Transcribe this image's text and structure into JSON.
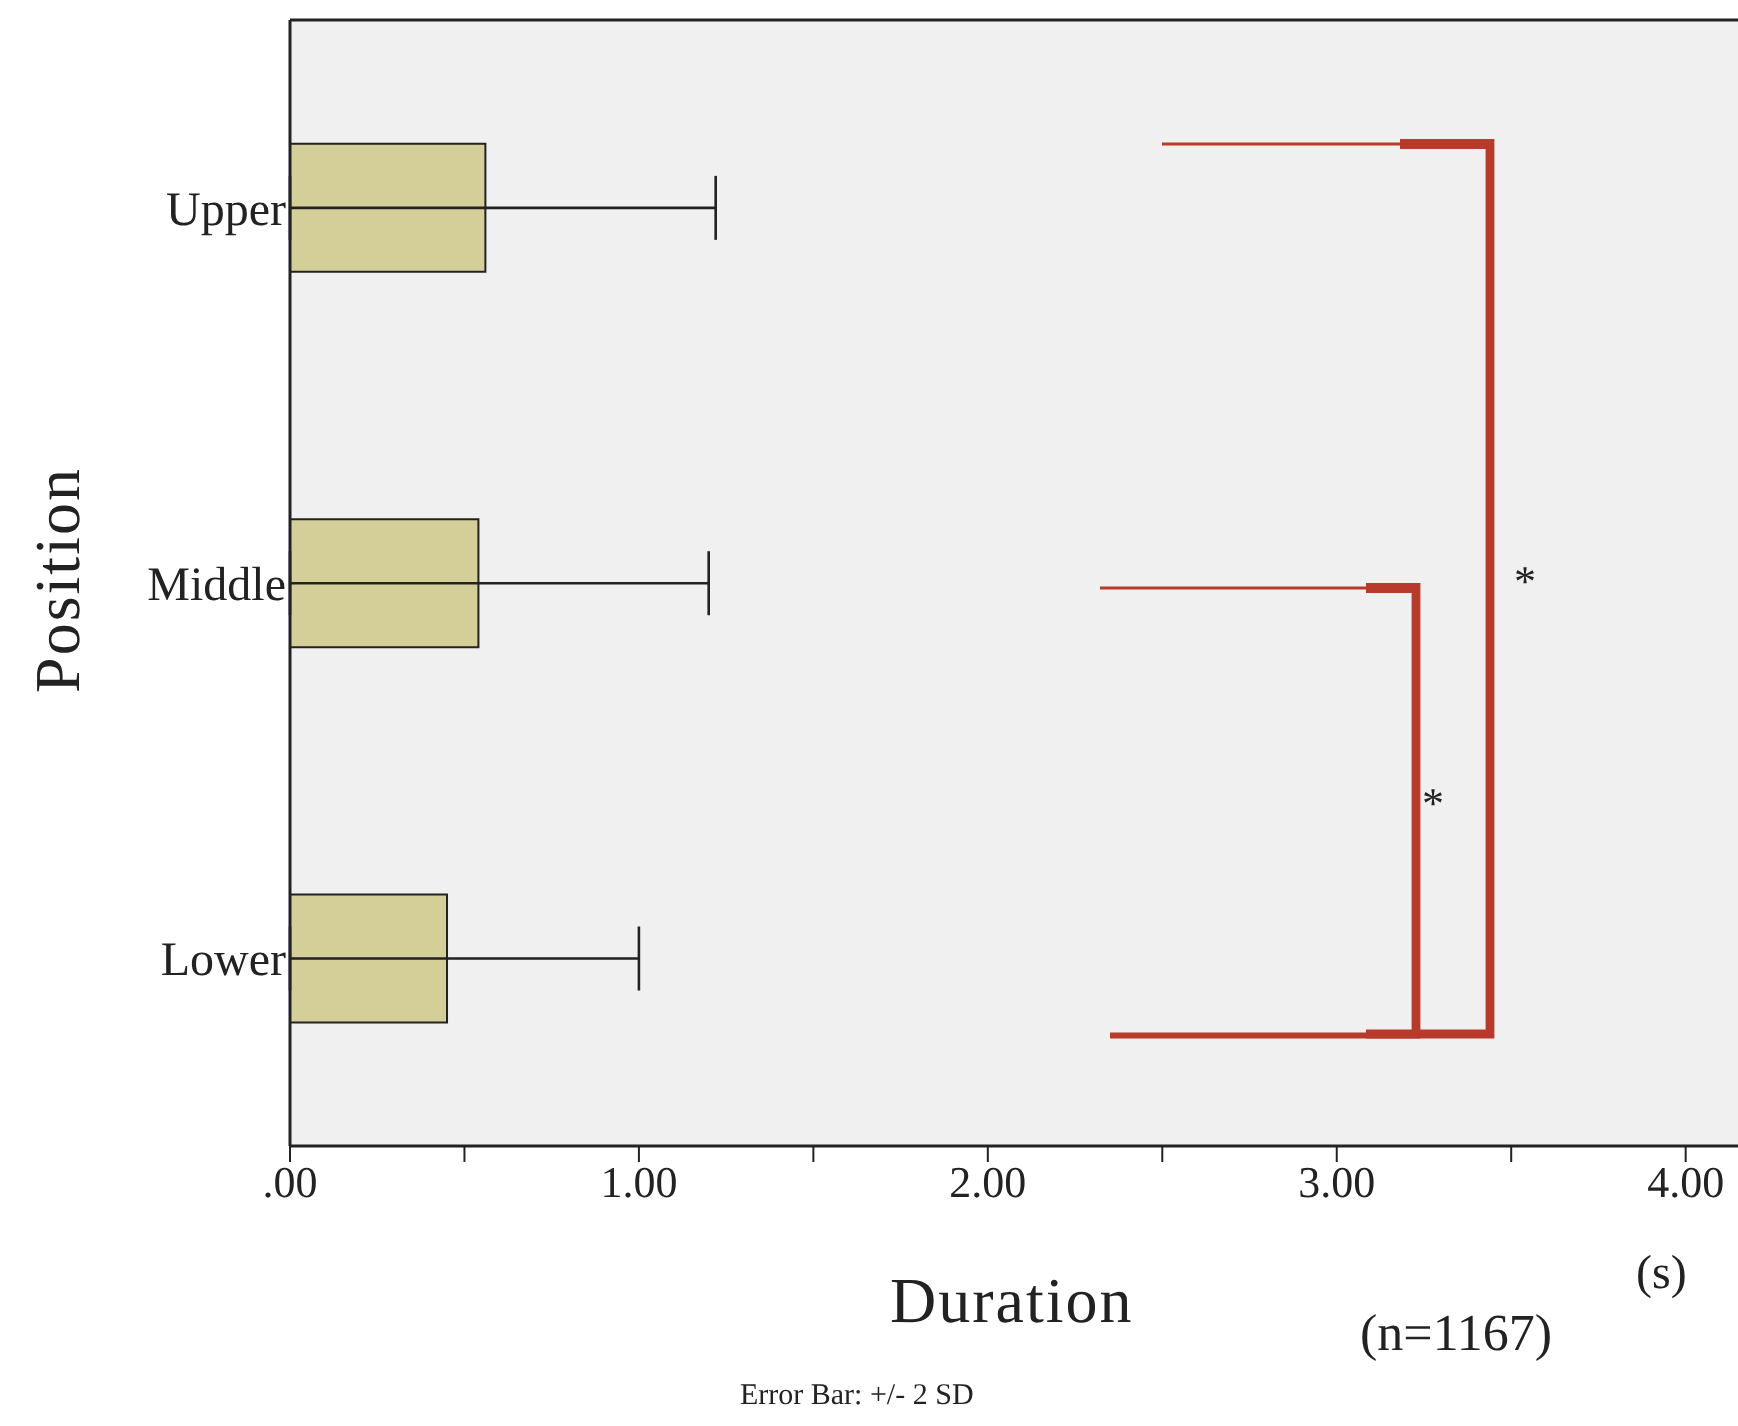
{
  "chart_data": {
    "type": "bar",
    "orientation": "horizontal",
    "categories": [
      "Upper",
      "Middle",
      "Lower"
    ],
    "values": [
      0.56,
      0.54,
      0.45
    ],
    "errors": [
      [
        0,
        1.22
      ],
      [
        0,
        1.2
      ],
      [
        0,
        1.0
      ]
    ],
    "color": "#d4cf98",
    "xlim": [
      0,
      4.15
    ],
    "xticks": [
      {
        "value": 0,
        "label": ".00"
      },
      {
        "value": 0.5,
        "label": null
      },
      {
        "value": 1,
        "label": "1.00"
      },
      {
        "value": 1.5,
        "label": null
      },
      {
        "value": 2,
        "label": "2.00"
      },
      {
        "value": 2.5,
        "label": null
      },
      {
        "value": 3,
        "label": "3.00"
      },
      {
        "value": 3.5,
        "label": null
      },
      {
        "value": 4,
        "label": "4.00"
      }
    ],
    "xlabel": "Duration",
    "ylabel": "Position",
    "annotations": [
      "*",
      "*",
      "(s)",
      "(n=1167)",
      "Error Bar: +/- 2 SD"
    ]
  }
}
